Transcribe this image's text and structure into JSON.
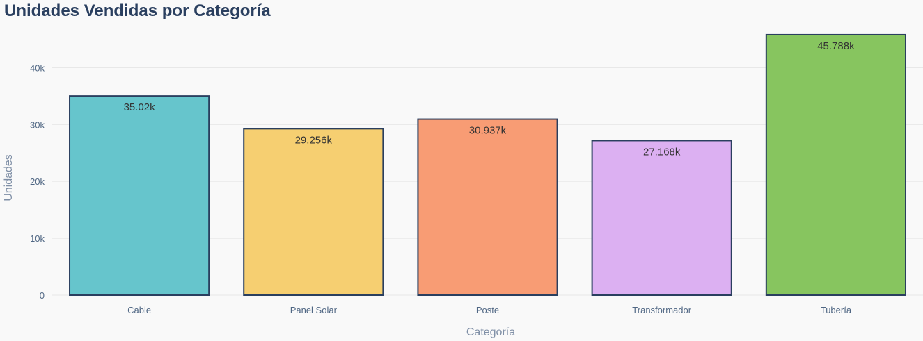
{
  "chart_data": {
    "type": "bar",
    "title": "Unidades Vendidas por Categoría",
    "xlabel": "Categoría",
    "ylabel": "Unidades",
    "categories": [
      "Cable",
      "Panel Solar",
      "Poste",
      "Transformador",
      "Tubería"
    ],
    "values": [
      35020,
      29256,
      30937,
      27168,
      45788
    ],
    "data_labels": [
      "35.02k",
      "29.256k",
      "30.937k",
      "27.168k",
      "45.788k"
    ],
    "bar_colors": [
      "#66c5cc",
      "#f6cf71",
      "#f89c74",
      "#dcb0f2",
      "#87c55f"
    ],
    "bar_outline_color": "#2a3f5f",
    "ylim": [
      0,
      47000
    ],
    "yticks": [
      0,
      10000,
      20000,
      30000,
      40000
    ],
    "ytick_labels": [
      "0",
      "10k",
      "20k",
      "30k",
      "40k"
    ],
    "grid": true,
    "legend": "none"
  }
}
